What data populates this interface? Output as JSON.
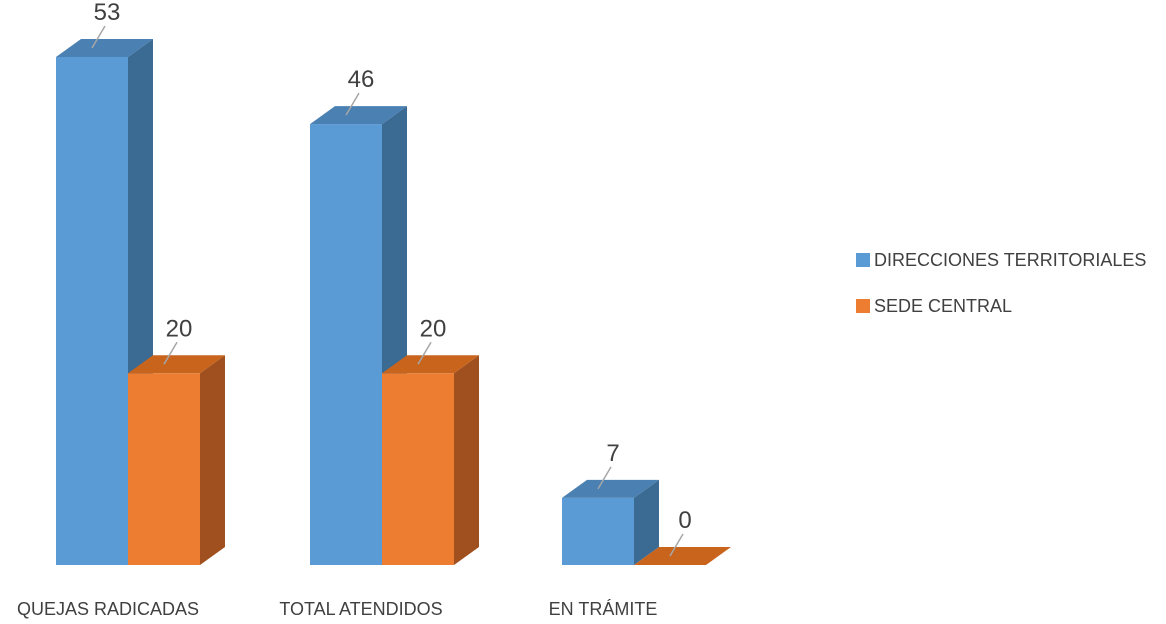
{
  "chart_data": {
    "type": "bar",
    "title": "",
    "xlabel": "",
    "ylabel": "",
    "categories": [
      "QUEJAS RADICADAS",
      "TOTAL ATENDIDOS",
      "EN TRÁMITE"
    ],
    "series": [
      {
        "name": "DIRECCIONES TERRITORIALES",
        "values": [
          53,
          46,
          7
        ],
        "color": "#5b9bd5"
      },
      {
        "name": "SEDE CENTRAL",
        "values": [
          20,
          20,
          0
        ],
        "color": "#ed7d31"
      }
    ],
    "ylim": [
      0,
      53
    ],
    "grid": false,
    "legend_position": "right",
    "bar_style": "3d"
  }
}
